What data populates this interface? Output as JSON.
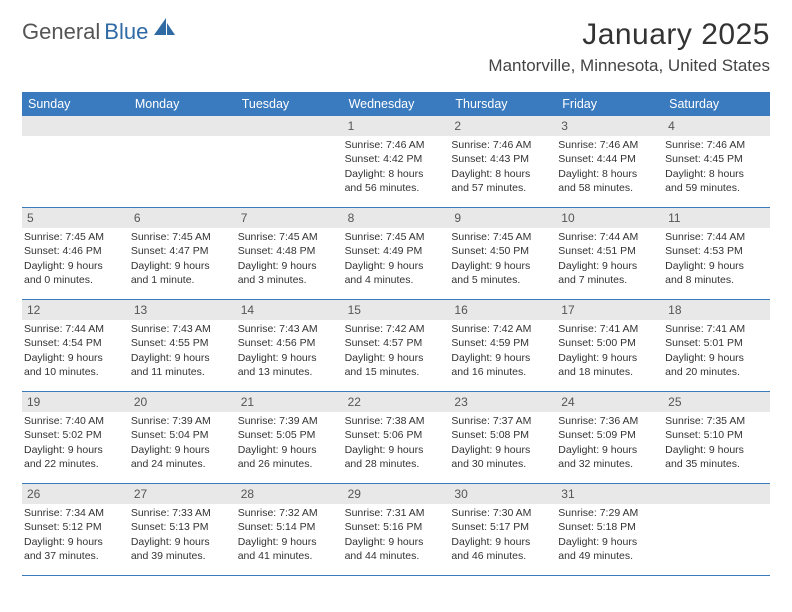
{
  "logo": {
    "text1": "General",
    "text2": "Blue"
  },
  "title": "January 2025",
  "location": "Mantorville, Minnesota, United States",
  "colors": {
    "header_bg": "#3a7abf",
    "header_text": "#ffffff",
    "daynum_bg": "#e8e8e8",
    "divider": "#3a7abf",
    "logo_gray": "#555555",
    "logo_blue": "#2f6aa5"
  },
  "day_names": [
    "Sunday",
    "Monday",
    "Tuesday",
    "Wednesday",
    "Thursday",
    "Friday",
    "Saturday"
  ],
  "weeks": [
    [
      {
        "n": "",
        "empty": true
      },
      {
        "n": "",
        "empty": true
      },
      {
        "n": "",
        "empty": true
      },
      {
        "n": "1",
        "sr": "Sunrise: 7:46 AM",
        "ss": "Sunset: 4:42 PM",
        "dl1": "Daylight: 8 hours",
        "dl2": "and 56 minutes."
      },
      {
        "n": "2",
        "sr": "Sunrise: 7:46 AM",
        "ss": "Sunset: 4:43 PM",
        "dl1": "Daylight: 8 hours",
        "dl2": "and 57 minutes."
      },
      {
        "n": "3",
        "sr": "Sunrise: 7:46 AM",
        "ss": "Sunset: 4:44 PM",
        "dl1": "Daylight: 8 hours",
        "dl2": "and 58 minutes."
      },
      {
        "n": "4",
        "sr": "Sunrise: 7:46 AM",
        "ss": "Sunset: 4:45 PM",
        "dl1": "Daylight: 8 hours",
        "dl2": "and 59 minutes."
      }
    ],
    [
      {
        "n": "5",
        "sr": "Sunrise: 7:45 AM",
        "ss": "Sunset: 4:46 PM",
        "dl1": "Daylight: 9 hours",
        "dl2": "and 0 minutes."
      },
      {
        "n": "6",
        "sr": "Sunrise: 7:45 AM",
        "ss": "Sunset: 4:47 PM",
        "dl1": "Daylight: 9 hours",
        "dl2": "and 1 minute."
      },
      {
        "n": "7",
        "sr": "Sunrise: 7:45 AM",
        "ss": "Sunset: 4:48 PM",
        "dl1": "Daylight: 9 hours",
        "dl2": "and 3 minutes."
      },
      {
        "n": "8",
        "sr": "Sunrise: 7:45 AM",
        "ss": "Sunset: 4:49 PM",
        "dl1": "Daylight: 9 hours",
        "dl2": "and 4 minutes."
      },
      {
        "n": "9",
        "sr": "Sunrise: 7:45 AM",
        "ss": "Sunset: 4:50 PM",
        "dl1": "Daylight: 9 hours",
        "dl2": "and 5 minutes."
      },
      {
        "n": "10",
        "sr": "Sunrise: 7:44 AM",
        "ss": "Sunset: 4:51 PM",
        "dl1": "Daylight: 9 hours",
        "dl2": "and 7 minutes."
      },
      {
        "n": "11",
        "sr": "Sunrise: 7:44 AM",
        "ss": "Sunset: 4:53 PM",
        "dl1": "Daylight: 9 hours",
        "dl2": "and 8 minutes."
      }
    ],
    [
      {
        "n": "12",
        "sr": "Sunrise: 7:44 AM",
        "ss": "Sunset: 4:54 PM",
        "dl1": "Daylight: 9 hours",
        "dl2": "and 10 minutes."
      },
      {
        "n": "13",
        "sr": "Sunrise: 7:43 AM",
        "ss": "Sunset: 4:55 PM",
        "dl1": "Daylight: 9 hours",
        "dl2": "and 11 minutes."
      },
      {
        "n": "14",
        "sr": "Sunrise: 7:43 AM",
        "ss": "Sunset: 4:56 PM",
        "dl1": "Daylight: 9 hours",
        "dl2": "and 13 minutes."
      },
      {
        "n": "15",
        "sr": "Sunrise: 7:42 AM",
        "ss": "Sunset: 4:57 PM",
        "dl1": "Daylight: 9 hours",
        "dl2": "and 15 minutes."
      },
      {
        "n": "16",
        "sr": "Sunrise: 7:42 AM",
        "ss": "Sunset: 4:59 PM",
        "dl1": "Daylight: 9 hours",
        "dl2": "and 16 minutes."
      },
      {
        "n": "17",
        "sr": "Sunrise: 7:41 AM",
        "ss": "Sunset: 5:00 PM",
        "dl1": "Daylight: 9 hours",
        "dl2": "and 18 minutes."
      },
      {
        "n": "18",
        "sr": "Sunrise: 7:41 AM",
        "ss": "Sunset: 5:01 PM",
        "dl1": "Daylight: 9 hours",
        "dl2": "and 20 minutes."
      }
    ],
    [
      {
        "n": "19",
        "sr": "Sunrise: 7:40 AM",
        "ss": "Sunset: 5:02 PM",
        "dl1": "Daylight: 9 hours",
        "dl2": "and 22 minutes."
      },
      {
        "n": "20",
        "sr": "Sunrise: 7:39 AM",
        "ss": "Sunset: 5:04 PM",
        "dl1": "Daylight: 9 hours",
        "dl2": "and 24 minutes."
      },
      {
        "n": "21",
        "sr": "Sunrise: 7:39 AM",
        "ss": "Sunset: 5:05 PM",
        "dl1": "Daylight: 9 hours",
        "dl2": "and 26 minutes."
      },
      {
        "n": "22",
        "sr": "Sunrise: 7:38 AM",
        "ss": "Sunset: 5:06 PM",
        "dl1": "Daylight: 9 hours",
        "dl2": "and 28 minutes."
      },
      {
        "n": "23",
        "sr": "Sunrise: 7:37 AM",
        "ss": "Sunset: 5:08 PM",
        "dl1": "Daylight: 9 hours",
        "dl2": "and 30 minutes."
      },
      {
        "n": "24",
        "sr": "Sunrise: 7:36 AM",
        "ss": "Sunset: 5:09 PM",
        "dl1": "Daylight: 9 hours",
        "dl2": "and 32 minutes."
      },
      {
        "n": "25",
        "sr": "Sunrise: 7:35 AM",
        "ss": "Sunset: 5:10 PM",
        "dl1": "Daylight: 9 hours",
        "dl2": "and 35 minutes."
      }
    ],
    [
      {
        "n": "26",
        "sr": "Sunrise: 7:34 AM",
        "ss": "Sunset: 5:12 PM",
        "dl1": "Daylight: 9 hours",
        "dl2": "and 37 minutes."
      },
      {
        "n": "27",
        "sr": "Sunrise: 7:33 AM",
        "ss": "Sunset: 5:13 PM",
        "dl1": "Daylight: 9 hours",
        "dl2": "and 39 minutes."
      },
      {
        "n": "28",
        "sr": "Sunrise: 7:32 AM",
        "ss": "Sunset: 5:14 PM",
        "dl1": "Daylight: 9 hours",
        "dl2": "and 41 minutes."
      },
      {
        "n": "29",
        "sr": "Sunrise: 7:31 AM",
        "ss": "Sunset: 5:16 PM",
        "dl1": "Daylight: 9 hours",
        "dl2": "and 44 minutes."
      },
      {
        "n": "30",
        "sr": "Sunrise: 7:30 AM",
        "ss": "Sunset: 5:17 PM",
        "dl1": "Daylight: 9 hours",
        "dl2": "and 46 minutes."
      },
      {
        "n": "31",
        "sr": "Sunrise: 7:29 AM",
        "ss": "Sunset: 5:18 PM",
        "dl1": "Daylight: 9 hours",
        "dl2": "and 49 minutes."
      },
      {
        "n": "",
        "empty": true
      }
    ]
  ]
}
